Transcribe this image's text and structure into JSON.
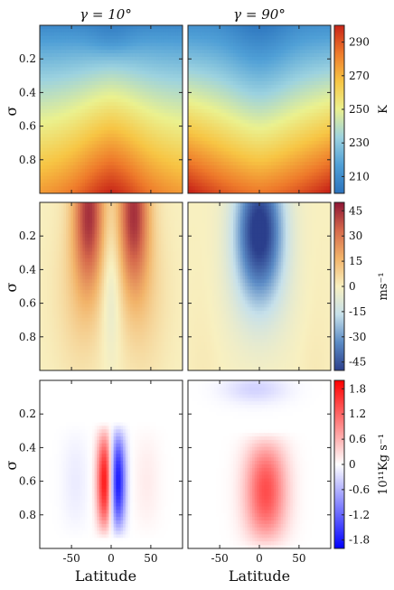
{
  "figure": {
    "column_titles": [
      "γ = 10°",
      "γ = 90°"
    ],
    "y_axis_label": "σ",
    "x_axis_label": "Latitude"
  },
  "chart_data": [
    {
      "type": "heatmap",
      "row": "temperature",
      "x": {
        "range": [
          -90,
          90
        ],
        "ticks": [
          -50,
          0,
          50
        ]
      },
      "y": {
        "range": [
          0,
          1
        ],
        "reversed": true,
        "ticks": [
          0.2,
          0.4,
          0.6,
          0.8
        ]
      },
      "colorbar": {
        "unit": "K",
        "range": [
          200,
          300
        ],
        "ticks": [
          210,
          230,
          250,
          270,
          290
        ],
        "colors": [
          "#2b73bd",
          "#4f9fd6",
          "#9cd2df",
          "#eaf18f",
          "#f7c544",
          "#ee7a2b",
          "#c82418"
        ]
      },
      "panels": [
        {
          "column_title": "γ = 10°"
        },
        {
          "column_title": "γ = 90°"
        }
      ]
    },
    {
      "type": "heatmap",
      "row": "zonal_wind",
      "x": {
        "range": [
          -90,
          90
        ],
        "ticks": [
          -50,
          0,
          50
        ]
      },
      "y": {
        "range": [
          0,
          1
        ],
        "reversed": true,
        "ticks": [
          0.2,
          0.4,
          0.6,
          0.8
        ]
      },
      "colorbar": {
        "unit": "ms⁻¹",
        "range": [
          -50,
          50
        ],
        "ticks": [
          45,
          30,
          15,
          0,
          -15,
          -30,
          -45
        ],
        "colors": [
          "#2b3f8c",
          "#5b8bc5",
          "#c6e0ea",
          "#f8f0c0",
          "#f2b46a",
          "#d66a4c",
          "#8e1535"
        ]
      },
      "panels": [
        {
          "column_title": "γ = 10°"
        },
        {
          "column_title": "γ = 90°"
        }
      ]
    },
    {
      "type": "heatmap",
      "row": "streamfunction",
      "x": {
        "range": [
          -90,
          90
        ],
        "ticks": [
          -50,
          0,
          50
        ]
      },
      "y": {
        "range": [
          0,
          1
        ],
        "reversed": true,
        "ticks": [
          0.2,
          0.4,
          0.6,
          0.8
        ]
      },
      "colorbar": {
        "unit": "10¹¹Kg s⁻¹",
        "range": [
          -2,
          2
        ],
        "ticks": [
          1.8,
          1.2,
          0.6,
          0,
          -0.6,
          -1.2,
          -1.8
        ],
        "colors": [
          "#0000ff",
          "#8080ff",
          "#ffffff",
          "#ff8080",
          "#ff0000"
        ]
      },
      "panels": [
        {
          "column_title": "γ = 10°"
        },
        {
          "column_title": "γ = 90°"
        }
      ]
    }
  ]
}
